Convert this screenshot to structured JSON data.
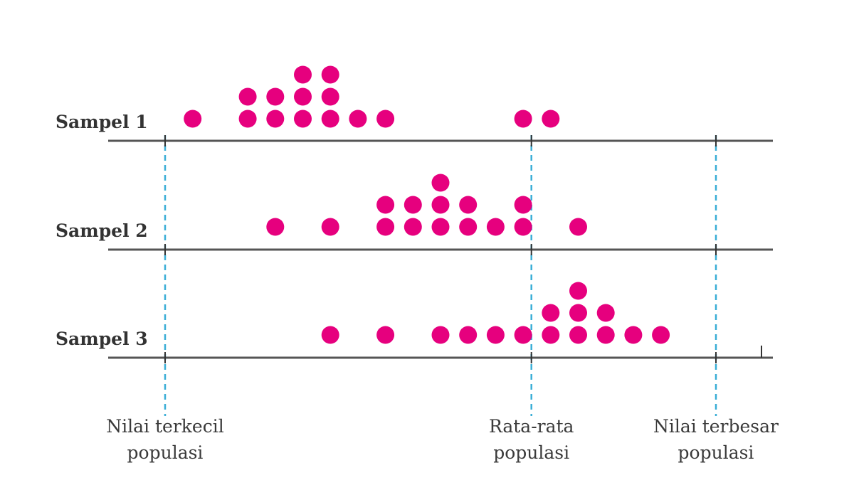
{
  "chart_data": {
    "type": "scatter",
    "subtype": "dot-plot",
    "title": "",
    "xlabel": "",
    "ylabel": "",
    "dot_color": "#e6007e",
    "grid": false,
    "units_per_column": 1,
    "x_range": [
      -1,
      21
    ],
    "series": [
      {
        "name": "Sampel 1",
        "points": [
          {
            "x": 1,
            "count": 1
          },
          {
            "x": 3,
            "count": 2
          },
          {
            "x": 4,
            "count": 2
          },
          {
            "x": 5,
            "count": 3
          },
          {
            "x": 6,
            "count": 3
          },
          {
            "x": 7,
            "count": 1
          },
          {
            "x": 8,
            "count": 1
          },
          {
            "x": 13,
            "count": 1
          },
          {
            "x": 14,
            "count": 1
          }
        ]
      },
      {
        "name": "Sampel 2",
        "points": [
          {
            "x": 4,
            "count": 1
          },
          {
            "x": 6,
            "count": 1
          },
          {
            "x": 8,
            "count": 2
          },
          {
            "x": 9,
            "count": 2
          },
          {
            "x": 10,
            "count": 3
          },
          {
            "x": 11,
            "count": 2
          },
          {
            "x": 12,
            "count": 1
          },
          {
            "x": 13,
            "count": 2
          },
          {
            "x": 15,
            "count": 1
          }
        ]
      },
      {
        "name": "Sampel 3",
        "points": [
          {
            "x": 6,
            "count": 1
          },
          {
            "x": 8,
            "count": 1
          },
          {
            "x": 10,
            "count": 1
          },
          {
            "x": 11,
            "count": 1
          },
          {
            "x": 12,
            "count": 1
          },
          {
            "x": 13,
            "count": 1
          },
          {
            "x": 14,
            "count": 2
          },
          {
            "x": 15,
            "count": 3
          },
          {
            "x": 16,
            "count": 2
          },
          {
            "x": 17,
            "count": 1
          },
          {
            "x": 18,
            "count": 1
          }
        ]
      }
    ],
    "reference_lines": [
      {
        "x": 0,
        "label_line1": "Nilai terkecil",
        "label_line2": "populasi"
      },
      {
        "x": 13.3,
        "label_line1": "Rata-rata",
        "label_line2": "populasi"
      },
      {
        "x": 20,
        "label_line1": "Nilai terbesar",
        "label_line2": "populasi"
      }
    ],
    "colors": {
      "dots": "#e6007e",
      "reference_lines": "#3aaed6",
      "axis": "#555555"
    }
  }
}
